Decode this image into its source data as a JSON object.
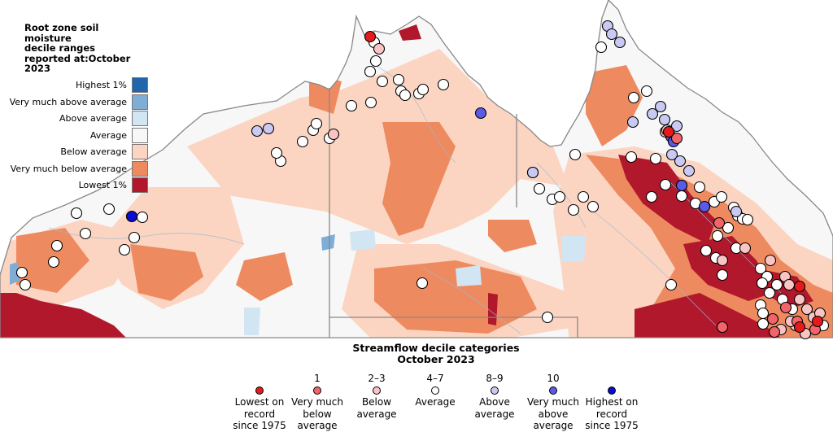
{
  "soil_moisture_legend": {
    "title": "Root zone soil moisture\ndecile ranges\nreported at:October 2023",
    "items": [
      {
        "label": "Highest 1%",
        "color": "#2166ac"
      },
      {
        "label": "Very much above average",
        "color": "#7fadd6"
      },
      {
        "label": "Above average",
        "color": "#d1e5f2"
      },
      {
        "label": "Average",
        "color": "#f7f7f7"
      },
      {
        "label": "Below average",
        "color": "#fbd5c2"
      },
      {
        "label": "Very much below average",
        "color": "#ee8a60"
      },
      {
        "label": "Lowest 1%",
        "color": "#b2182b"
      }
    ]
  },
  "streamflow_legend": {
    "title": "Streamflow decile categories\nOctober 2023",
    "items": [
      {
        "number": "",
        "label": "Lowest on\nrecord\nsince 1975",
        "color": "#e41a1c"
      },
      {
        "number": "1",
        "label": "Very much\nbelow\naverage",
        "color": "#f0646a"
      },
      {
        "number": "2–3",
        "label": "Below\naverage",
        "color": "#f9c4c4"
      },
      {
        "number": "4–7",
        "label": "Average",
        "color": "#ffffff"
      },
      {
        "number": "8–9",
        "label": "Above\naverage",
        "color": "#c9c9f3"
      },
      {
        "number": "10",
        "label": "Very much\nabove\naverage",
        "color": "#5a5ae6"
      },
      {
        "number": "",
        "label": "Highest on\nrecord\nsince 1975",
        "color": "#0a0ad2"
      }
    ]
  }
}
